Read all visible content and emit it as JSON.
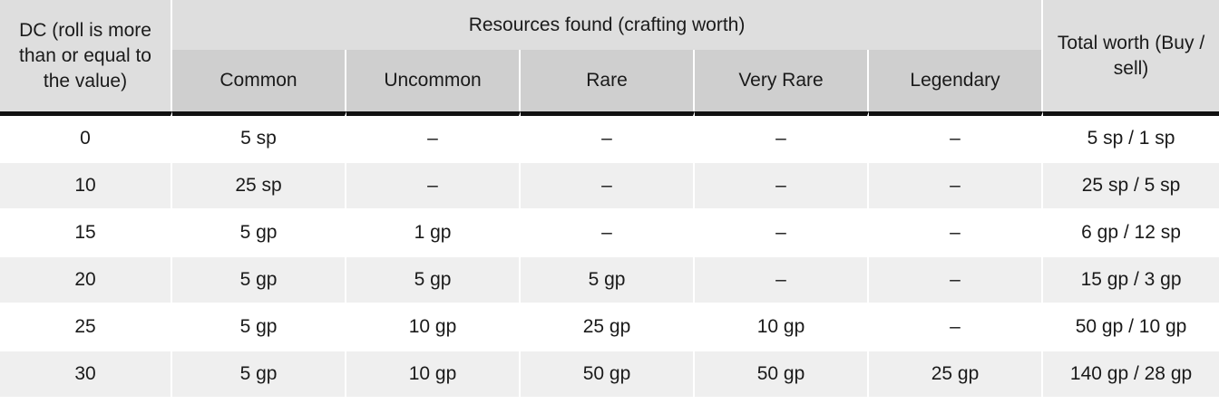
{
  "header": {
    "dc_label": "DC (roll is more than or equal to the value)",
    "group_label": "Resources found (crafting worth)",
    "total_label": "Total worth (Buy / sell)",
    "columns": [
      "Common",
      "Uncommon",
      "Rare",
      "Very Rare",
      "Legendary"
    ]
  },
  "rows": [
    {
      "dc": "0",
      "common": "5 sp",
      "uncommon": "–",
      "rare": "–",
      "very_rare": "–",
      "legendary": "–",
      "total": "5 sp / 1 sp"
    },
    {
      "dc": "10",
      "common": "25 sp",
      "uncommon": "–",
      "rare": "–",
      "very_rare": "–",
      "legendary": "–",
      "total": "25 sp / 5 sp"
    },
    {
      "dc": "15",
      "common": "5 gp",
      "uncommon": "1 gp",
      "rare": "–",
      "very_rare": "–",
      "legendary": "–",
      "total": "6 gp / 12 sp"
    },
    {
      "dc": "20",
      "common": "5 gp",
      "uncommon": "5 gp",
      "rare": "5 gp",
      "very_rare": "–",
      "legendary": "–",
      "total": "15 gp / 3 gp"
    },
    {
      "dc": "25",
      "common": "5 gp",
      "uncommon": "10 gp",
      "rare": "25 gp",
      "very_rare": "10 gp",
      "legendary": "–",
      "total": "50 gp / 10 gp"
    },
    {
      "dc": "30",
      "common": "5 gp",
      "uncommon": "10 gp",
      "rare": "50 gp",
      "very_rare": "50 gp",
      "legendary": "25 gp",
      "total": "140 gp / 28 gp"
    }
  ],
  "colors": {
    "header_bg": "#dedede",
    "subheader_bg": "#cfcfcf",
    "stripe_bg": "#efefef",
    "rule": "#111111"
  }
}
